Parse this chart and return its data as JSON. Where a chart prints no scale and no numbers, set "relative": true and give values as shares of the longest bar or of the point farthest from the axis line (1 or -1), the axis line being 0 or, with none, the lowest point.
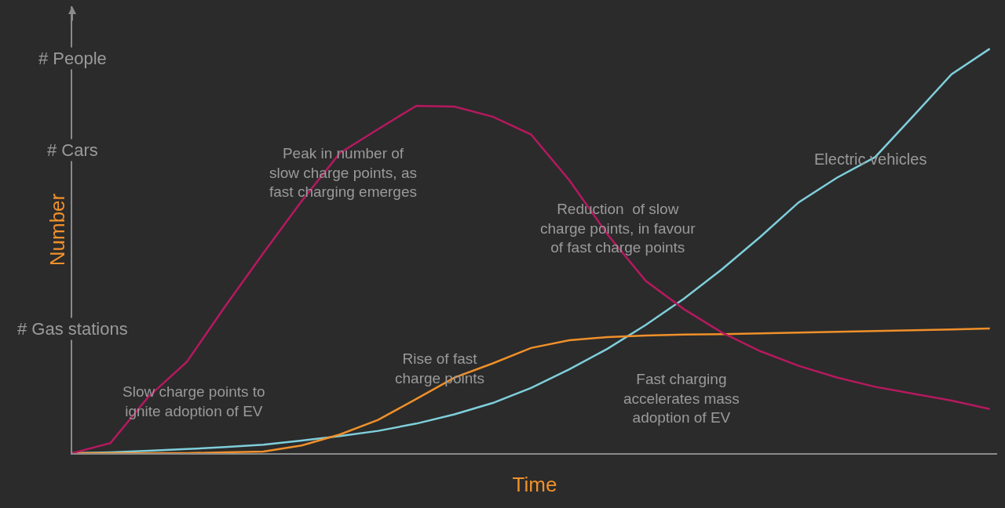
{
  "chart_data": {
    "type": "line",
    "relative": true,
    "xlabel": "Time",
    "ylabel": "Number",
    "categories": [
      null,
      null,
      null,
      null,
      null,
      null,
      null,
      null,
      null,
      null,
      null,
      null,
      null,
      null,
      null,
      null,
      null,
      null,
      null,
      null,
      null,
      null,
      null,
      null,
      null
    ],
    "series": [
      {
        "name": "Electric vehicles",
        "color": "#7fcfdc",
        "values": [
          0,
          0.002,
          0.006,
          0.01,
          0.015,
          0.021,
          0.031,
          0.042,
          0.055,
          0.073,
          0.096,
          0.124,
          0.161,
          0.207,
          0.258,
          0.317,
          0.382,
          0.455,
          0.535,
          0.62,
          0.681,
          0.732,
          0.834,
          0.937,
          1.0
        ]
      },
      {
        "color": "#f0902a",
        "values": [
          0,
          0,
          0,
          0,
          0.002,
          0.004,
          0.019,
          0.046,
          0.082,
          0.134,
          0.187,
          0.222,
          0.26,
          0.279,
          0.287,
          0.291,
          0.293,
          0.294,
          0.296,
          0.298,
          0.3,
          0.302,
          0.304,
          0.306,
          0.308
        ]
      },
      {
        "color": "#b5195f",
        "values": [
          0,
          0.025,
          0.14,
          0.226,
          0.363,
          0.495,
          0.623,
          0.742,
          0.801,
          0.859,
          0.857,
          0.832,
          0.788,
          0.675,
          0.541,
          0.426,
          0.356,
          0.298,
          0.252,
          0.216,
          0.187,
          0.164,
          0.147,
          0.13,
          0.109
        ]
      }
    ],
    "annotations": [
      "# People",
      "# Cars",
      "# Gas stations",
      "Slow charge points to\nignite adoption of EV",
      "Peak in number of\nslow charge points, as\nfast charging emerges",
      "Reduction  of slow\ncharge points, in favour\nof fast charge points",
      "Rise of fast\ncharge points",
      "Fast charging\naccelerates mass\nadoption of EV"
    ],
    "grid": false,
    "legend": false,
    "tick_labels": false,
    "marker": "none",
    "line_style": "solid"
  }
}
